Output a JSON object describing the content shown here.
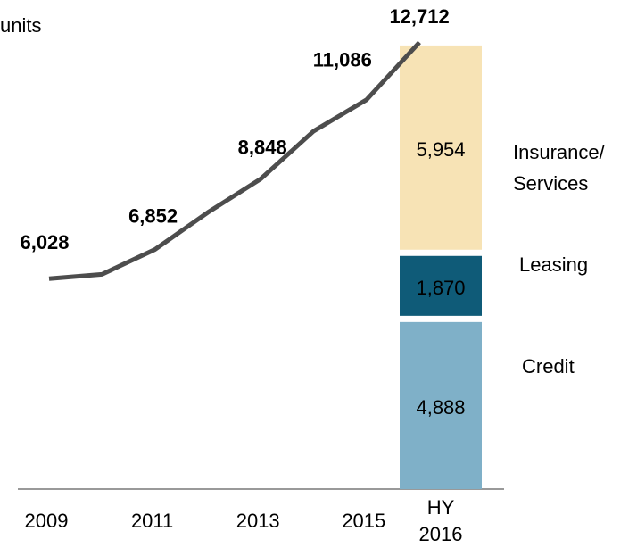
{
  "chart_data": [
    {
      "type": "line",
      "unit_label": "units",
      "categories": [
        "2009",
        null,
        "2011",
        null,
        "2013",
        null,
        "2015",
        "HY 2016"
      ],
      "values": [
        6028,
        6150,
        6852,
        7900,
        8848,
        10200,
        11086,
        12712
      ],
      "value_labels": [
        "6,028",
        null,
        "6,852",
        null,
        "8,848",
        null,
        "11,086",
        "12,712"
      ],
      "color": "#4d4d4d",
      "ylim": [
        0,
        13000
      ]
    },
    {
      "type": "bar",
      "stacked": true,
      "series": [
        {
          "name": "Credit",
          "color": "#7fb0c8",
          "values": [
            4888
          ],
          "value_labels": [
            "4,888"
          ]
        },
        {
          "name": "Leasing",
          "color": "#0f5b78",
          "values": [
            1870
          ],
          "value_labels": [
            "1,870"
          ]
        },
        {
          "name": "Insurance/ Services",
          "color": "#f7e3b5",
          "values": [
            5954
          ],
          "value_labels": [
            "5,954"
          ]
        }
      ],
      "ylim": [
        0,
        13000
      ]
    }
  ]
}
